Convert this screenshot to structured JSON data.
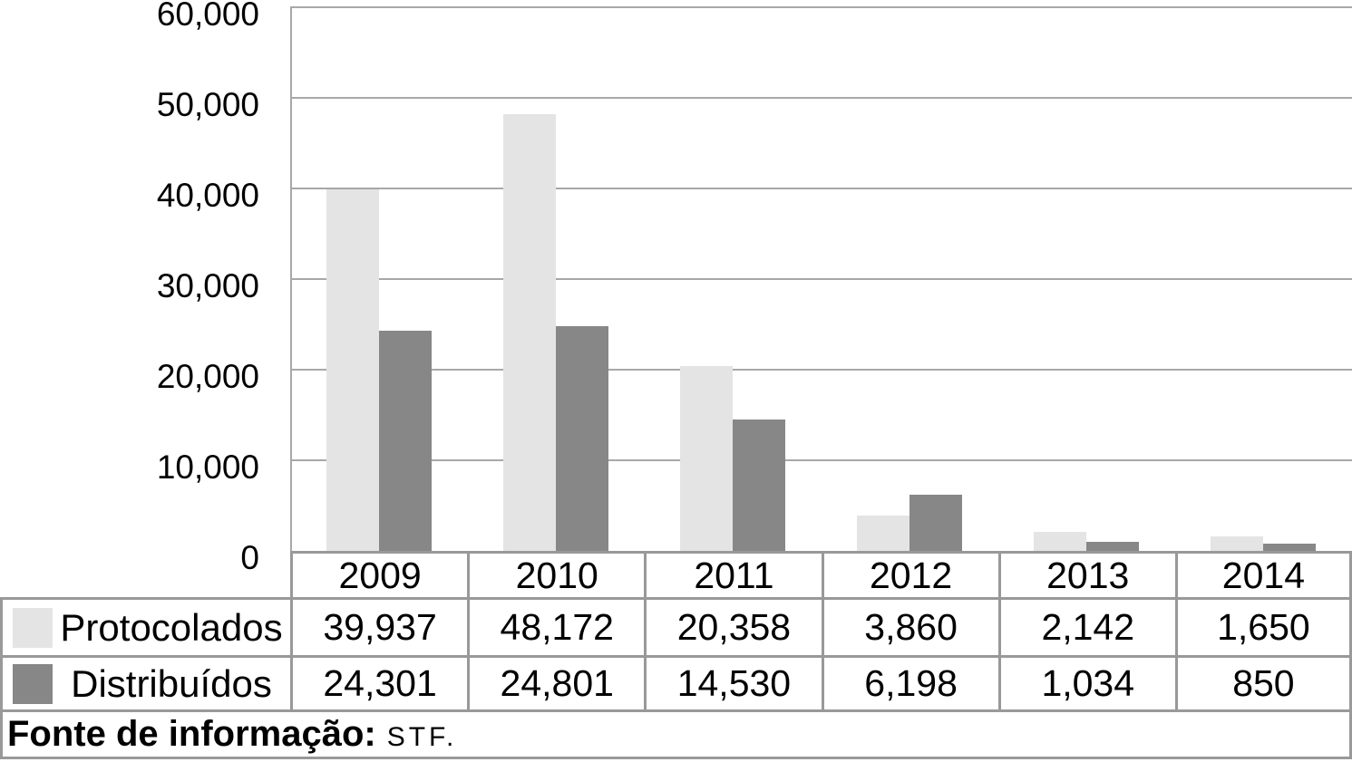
{
  "chart_data": {
    "type": "bar",
    "categories": [
      "2009",
      "2010",
      "2011",
      "2012",
      "2013",
      "2014"
    ],
    "series": [
      {
        "name": "Protocolados",
        "color": "#e4e4e4",
        "values": [
          39937,
          48172,
          20358,
          3860,
          2142,
          1650
        ]
      },
      {
        "name": "Distribuídos",
        "color": "#878787",
        "values": [
          24301,
          24801,
          14530,
          6198,
          1034,
          850
        ]
      }
    ],
    "title": "",
    "xlabel": "",
    "ylabel": "",
    "ylim": [
      0,
      60000
    ],
    "ytick_interval": 10000,
    "ytick_labels": [
      "0",
      "10,000",
      "20,000",
      "30,000",
      "40,000",
      "50,000",
      "60,000"
    ],
    "grid": "horizontal",
    "legend_position": "table-left-of-rows"
  },
  "table": {
    "columns": [
      "2009",
      "2010",
      "2011",
      "2012",
      "2013",
      "2014"
    ],
    "rows": [
      {
        "label": "Protocolados",
        "swatch": "#e4e4e4",
        "values": [
          "39,937",
          "48,172",
          "20,358",
          "3,860",
          "2,142",
          "1,650"
        ]
      },
      {
        "label": "Distribuídos",
        "swatch": "#878787",
        "values": [
          "24,301",
          "24,801",
          "14,530",
          "6,198",
          "1,034",
          "850"
        ]
      }
    ]
  },
  "footer": {
    "label": "Fonte de informação:",
    "source": "STF."
  },
  "colors": {
    "protocolados_bar": "#e4e4e4",
    "distribuidos_bar": "#878787",
    "gridline": "#a8a8a8",
    "table_border": "#999999",
    "text": "#000000",
    "background": "#ffffff"
  }
}
